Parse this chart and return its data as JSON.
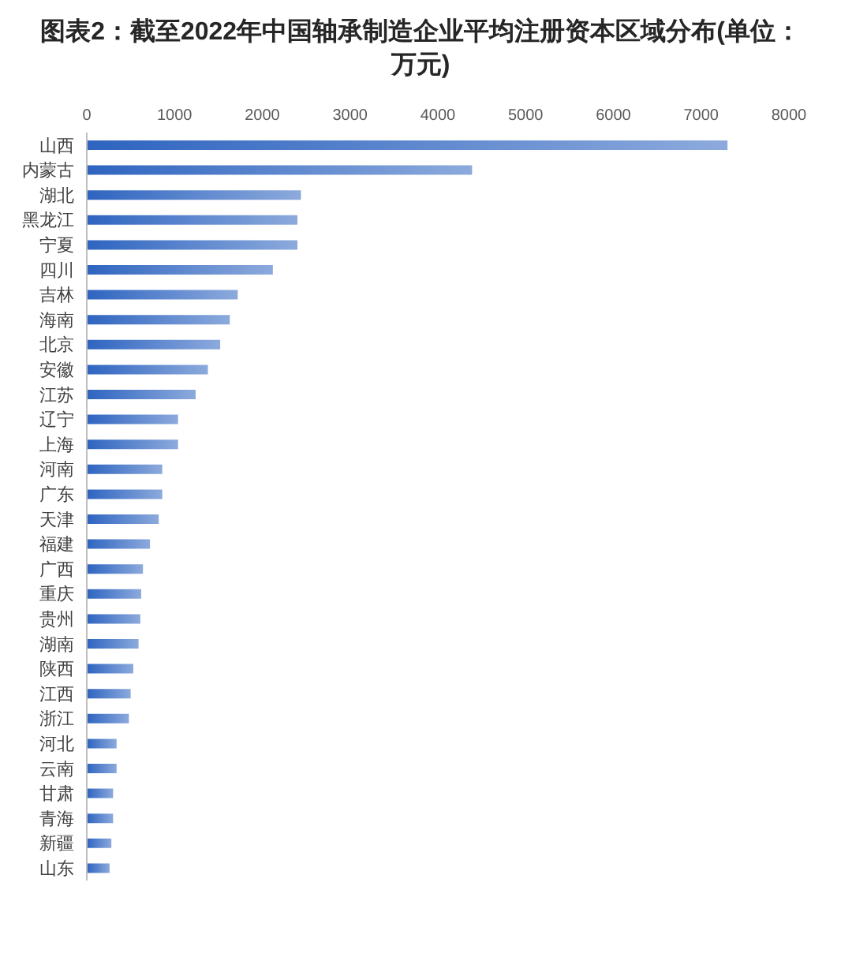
{
  "chart_data": {
    "type": "bar",
    "orientation": "horizontal",
    "title": "图表2：截至2022年中国轴承制造企业平均注册资本区域分布(单位：万元)",
    "categories": [
      "山西",
      "内蒙古",
      "湖北",
      "黑龙江",
      "宁夏",
      "四川",
      "吉林",
      "海南",
      "北京",
      "安徽",
      "江苏",
      "辽宁",
      "上海",
      "河南",
      "广东",
      "天津",
      "福建",
      "广西",
      "重庆",
      "贵州",
      "湖南",
      "陕西",
      "江西",
      "浙江",
      "河北",
      "云南",
      "甘肃",
      "青海",
      "新疆",
      "山东"
    ],
    "values": [
      7300,
      4390,
      2440,
      2400,
      2400,
      2120,
      1720,
      1630,
      1520,
      1380,
      1240,
      1040,
      1040,
      860,
      860,
      820,
      720,
      640,
      620,
      610,
      590,
      530,
      500,
      480,
      340,
      340,
      300,
      300,
      280,
      260
    ],
    "color": "#2e64c0",
    "xlim": [
      0,
      8000
    ],
    "xticks": [
      0,
      1000,
      2000,
      3000,
      4000,
      5000,
      6000,
      7000,
      8000
    ]
  }
}
